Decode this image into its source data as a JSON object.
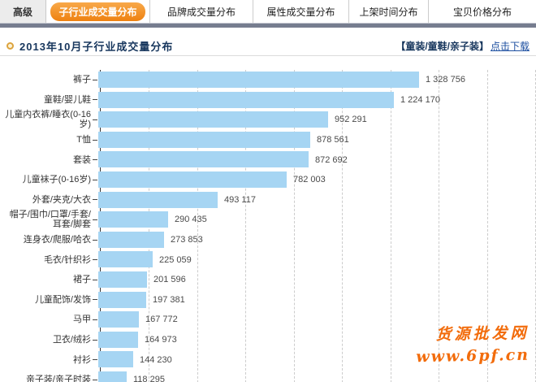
{
  "tabs": {
    "advanced_label": "高级",
    "items": [
      {
        "label": "子行业成交量分布",
        "active": true
      },
      {
        "label": "品牌成交量分布",
        "active": false
      },
      {
        "label": "属性成交量分布",
        "active": false
      },
      {
        "label": "上架时间分布",
        "active": false
      },
      {
        "label": "宝贝价格分布",
        "active": false
      }
    ]
  },
  "header": {
    "title": "2013年10月子行业成交量分布",
    "category_scope": "【童装/童鞋/亲子装】",
    "download_link": "点击下载"
  },
  "chart_data": {
    "type": "bar",
    "orientation": "horizontal",
    "title": "2013年10月子行业成交量分布",
    "categories": [
      "裤子",
      "童鞋/婴儿鞋",
      "儿童内衣裤/睡衣(0-16岁)",
      "T恤",
      "套装",
      "儿童袜子(0-16岁)",
      "外套/夹克/大衣",
      "帽子/围巾/口罩/手套/耳套/脚套",
      "连身衣/爬服/哈衣",
      "毛衣/针织衫",
      "裙子",
      "儿童配饰/发饰",
      "马甲",
      "卫衣/绒衫",
      "衬衫",
      "亲子装/亲子时装"
    ],
    "values": [
      1328756,
      1224170,
      952291,
      878561,
      872692,
      782003,
      493117,
      290435,
      273853,
      225059,
      201596,
      197381,
      167772,
      164973,
      144230,
      118295
    ],
    "value_labels": [
      "1 328 756",
      "1 224 170",
      "952 291",
      "878 561",
      "872 692",
      "782 003",
      "493 117",
      "290 435",
      "273 853",
      "225 059",
      "201 596",
      "197 381",
      "167 772",
      "164 973",
      "144 230",
      "118 295"
    ],
    "xlim": [
      0,
      1800000
    ],
    "gridline_interval": 200000,
    "grid": true,
    "legend": false,
    "bar_color": "#a6d5f3"
  },
  "watermark": {
    "line1": "货源批发网",
    "line2": "www.6pf.cn"
  },
  "colors": {
    "accent_orange": "#ee8110",
    "title_navy": "#17365d",
    "link_blue": "#1d4fa0",
    "bar_blue": "#a6d5f3",
    "strip_gray": "#767d8f",
    "watermark_orange": "#f26c0c"
  }
}
